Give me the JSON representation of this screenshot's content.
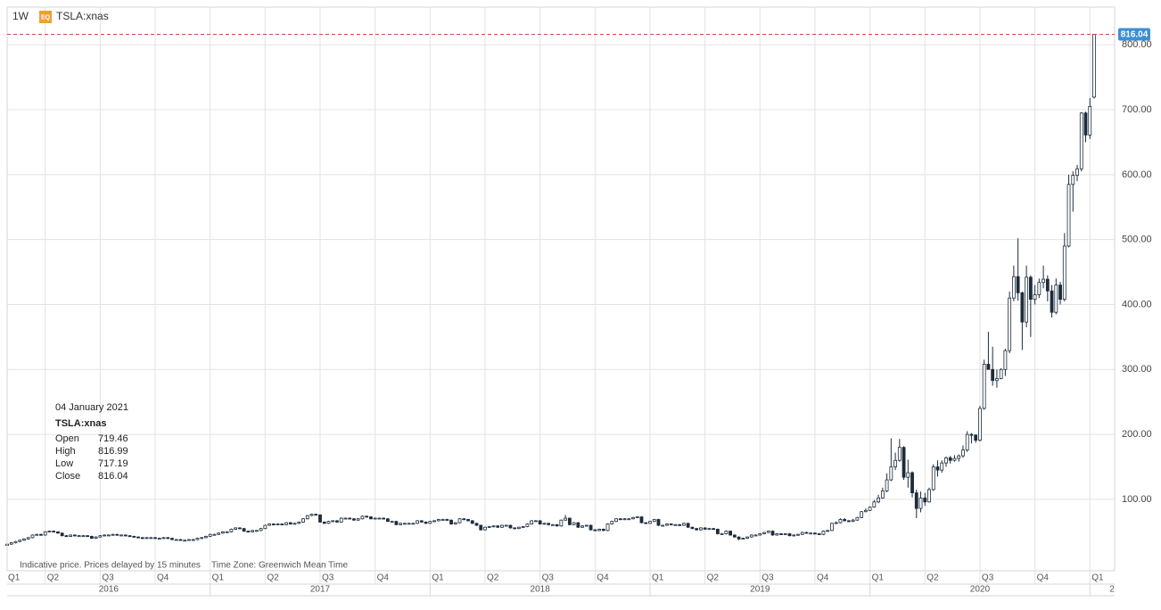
{
  "chart_data": {
    "type": "candlestick",
    "interval": "1W",
    "badge": "EQ",
    "symbol": "TSLA:xnas",
    "footnote": "Indicative price. Prices delayed by 15 minutes",
    "timezone": "Time Zone: Greenwich Mean Time",
    "tooltip_date": "04 January 2021",
    "line_color": "#1d2c3c",
    "up_color": "#ffffff",
    "down_color": "#1d2c3c",
    "ylim": [
      -10,
      858
    ],
    "yticks": [
      {
        "value": 100,
        "label": "100.00"
      },
      {
        "value": 200,
        "label": "200.00"
      },
      {
        "value": 300,
        "label": "300.00"
      },
      {
        "value": 400,
        "label": "400.00"
      },
      {
        "value": 500,
        "label": "500.00"
      },
      {
        "value": 600,
        "label": "600.00"
      },
      {
        "value": 700,
        "label": "700.00"
      },
      {
        "value": 800,
        "label": "800.00"
      }
    ],
    "grid": true,
    "quarters": [
      "Q1",
      "Q2",
      "Q3",
      "Q4",
      "Q1",
      "Q2",
      "Q3",
      "Q4",
      "Q1",
      "Q2",
      "Q3",
      "Q4",
      "Q1",
      "Q2",
      "Q3",
      "Q4",
      "Q1",
      "Q2",
      "Q3",
      "Q4",
      "Q1"
    ],
    "years": [
      "2016",
      "2017",
      "2018",
      "2019",
      "2020",
      "2"
    ],
    "series": [
      {
        "name": "Open",
        "values": [
          29,
          31,
          33,
          35,
          37,
          39,
          41,
          45,
          46,
          45,
          50,
          51,
          50,
          48,
          44,
          43,
          45,
          44,
          44,
          44,
          43,
          40,
          42,
          44,
          45,
          45,
          46,
          45,
          45,
          44,
          43,
          42,
          41,
          40,
          41,
          41,
          40,
          40,
          41,
          40,
          38,
          38,
          37,
          37,
          38,
          38,
          40,
          41,
          43,
          46,
          46,
          48,
          50,
          50,
          54,
          56,
          55,
          51,
          50,
          52,
          52,
          55,
          60,
          62,
          61,
          62,
          61,
          64,
          62,
          63,
          65,
          70,
          75,
          77,
          76,
          65,
          63,
          66,
          67,
          65,
          71,
          71,
          70,
          68,
          70,
          74,
          73,
          70,
          71,
          71,
          70,
          66,
          66,
          61,
          63,
          63,
          63,
          63,
          67,
          65,
          63,
          66,
          67,
          69,
          69,
          68,
          62,
          64,
          70,
          69,
          67,
          63,
          60,
          53,
          57,
          58,
          59,
          57,
          60,
          60,
          56,
          55,
          57,
          58,
          62,
          67,
          67,
          62,
          63,
          61,
          61,
          59,
          68,
          71,
          61,
          64,
          57,
          59,
          60,
          53,
          52,
          54,
          52,
          62,
          66,
          70,
          69,
          70,
          70,
          72,
          73,
          64,
          63,
          66,
          69,
          60,
          60,
          62,
          61,
          61,
          60,
          63,
          57,
          55,
          53,
          56,
          54,
          55,
          54,
          47,
          47,
          51,
          45,
          42,
          39,
          40,
          42,
          45,
          45,
          47,
          49,
          51,
          45,
          47,
          46,
          47,
          44,
          45,
          46,
          49,
          48,
          48,
          47,
          46,
          51,
          52,
          63,
          64,
          69,
          67,
          66,
          68,
          72,
          81,
          83,
          88,
          96,
          102,
          113,
          130,
          150,
          160,
          180,
          134,
          141,
          110,
          86,
          102,
          96,
          115,
          150,
          145,
          156,
          164,
          160,
          163,
          167,
          176,
          200,
          199,
          191,
          240,
          308,
          300,
          283,
          286,
          300,
          329,
          410,
          443,
          418,
          373,
          442,
          408,
          415,
          434,
          439,
          421,
          388,
          430,
          408,
          490,
          585,
          599,
          609,
          695,
          661,
          719.46
        ]
      },
      {
        "name": "High",
        "values": [
          32,
          34,
          36,
          38,
          40,
          42,
          46,
          47,
          47,
          51,
          52,
          52,
          51,
          49,
          45,
          46,
          46,
          45,
          45,
          45,
          44,
          43,
          45,
          46,
          46,
          47,
          47,
          46,
          46,
          45,
          44,
          43,
          42,
          42,
          42,
          42,
          41,
          42,
          42,
          41,
          39,
          39,
          38,
          39,
          39,
          41,
          42,
          44,
          47,
          47,
          49,
          51,
          51,
          55,
          57,
          57,
          56,
          52,
          53,
          53,
          56,
          61,
          63,
          63,
          63,
          63,
          65,
          65,
          64,
          66,
          71,
          76,
          78,
          78,
          77,
          66,
          67,
          68,
          68,
          72,
          72,
          72,
          71,
          71,
          75,
          75,
          74,
          72,
          72,
          72,
          71,
          67,
          67,
          64,
          64,
          64,
          64,
          68,
          68,
          66,
          67,
          68,
          70,
          70,
          70,
          69,
          65,
          71,
          71,
          70,
          68,
          64,
          61,
          58,
          59,
          60,
          60,
          61,
          61,
          61,
          57,
          58,
          59,
          63,
          68,
          68,
          68,
          64,
          64,
          62,
          62,
          69,
          76,
          72,
          65,
          65,
          60,
          61,
          61,
          54,
          55,
          55,
          63,
          67,
          71,
          71,
          71,
          71,
          73,
          74,
          74,
          65,
          67,
          70,
          70,
          61,
          63,
          63,
          62,
          62,
          64,
          64,
          58,
          56,
          57,
          57,
          56,
          56,
          55,
          48,
          52,
          52,
          46,
          43,
          41,
          43,
          46,
          46,
          48,
          50,
          52,
          52,
          48,
          48,
          48,
          48,
          46,
          47,
          50,
          50,
          49,
          49,
          48,
          52,
          53,
          64,
          66,
          71,
          71,
          68,
          70,
          73,
          82,
          86,
          89,
          99,
          107,
          118,
          140,
          194,
          172,
          193,
          182,
          161,
          143,
          115,
          112,
          110,
          118,
          154,
          160,
          160,
          166,
          167,
          168,
          169,
          183,
          205,
          202,
          200,
          244,
          315,
          358,
          335,
          300,
          302,
          332,
          420,
          460,
          502,
          420,
          460,
          445,
          430,
          440,
          460,
          445,
          430,
          440,
          435,
          510,
          600,
          605,
          615,
          696,
          697,
          718,
          816.99
        ]
      },
      {
        "name": "Low",
        "values": [
          28,
          30,
          32,
          34,
          36,
          38,
          40,
          44,
          44,
          44,
          49,
          49,
          47,
          43,
          42,
          42,
          43,
          43,
          43,
          42,
          39,
          39,
          41,
          43,
          44,
          44,
          44,
          44,
          43,
          42,
          41,
          40,
          39,
          39,
          40,
          39,
          39,
          39,
          39,
          37,
          37,
          36,
          36,
          36,
          37,
          37,
          39,
          40,
          42,
          45,
          45,
          47,
          49,
          49,
          53,
          54,
          50,
          49,
          49,
          51,
          51,
          54,
          59,
          60,
          60,
          60,
          60,
          61,
          61,
          62,
          64,
          69,
          74,
          75,
          64,
          62,
          62,
          65,
          64,
          64,
          70,
          69,
          67,
          67,
          69,
          72,
          69,
          69,
          70,
          69,
          65,
          65,
          60,
          60,
          62,
          62,
          62,
          62,
          64,
          62,
          62,
          65,
          66,
          68,
          67,
          61,
          61,
          63,
          68,
          66,
          62,
          59,
          52,
          52,
          56,
          57,
          56,
          56,
          59,
          55,
          54,
          54,
          56,
          57,
          61,
          66,
          61,
          61,
          60,
          60,
          58,
          58,
          67,
          60,
          60,
          56,
          56,
          58,
          52,
          51,
          51,
          51,
          51,
          61,
          65,
          68,
          68,
          69,
          69,
          71,
          63,
          62,
          62,
          65,
          59,
          59,
          59,
          60,
          60,
          59,
          59,
          56,
          54,
          52,
          52,
          53,
          53,
          53,
          46,
          46,
          46,
          44,
          41,
          37,
          38,
          39,
          41,
          44,
          44,
          46,
          48,
          44,
          44,
          45,
          45,
          43,
          43,
          44,
          45,
          47,
          47,
          46,
          45,
          45,
          50,
          51,
          62,
          63,
          66,
          65,
          65,
          67,
          71,
          80,
          82,
          87,
          94,
          101,
          111,
          128,
          145,
          158,
          130,
          118,
          103,
          71,
          80,
          90,
          95,
          113,
          135,
          141,
          150,
          155,
          158,
          158,
          164,
          173,
          186,
          187,
          189,
          238,
          300,
          275,
          272,
          285,
          290,
          325,
          405,
          406,
          330,
          365,
          350,
          400,
          410,
          425,
          405,
          380,
          385,
          400,
          405,
          488,
          543,
          590,
          605,
          650,
          655,
          717.19
        ]
      },
      {
        "name": "Close",
        "values": [
          31,
          33,
          35,
          37,
          39,
          41,
          45,
          46,
          45,
          50,
          51,
          50,
          48,
          44,
          43,
          45,
          44,
          44,
          44,
          43,
          40,
          42,
          44,
          45,
          45,
          46,
          45,
          45,
          44,
          43,
          42,
          41,
          40,
          41,
          41,
          40,
          40,
          41,
          40,
          38,
          38,
          37,
          37,
          38,
          38,
          40,
          41,
          43,
          46,
          46,
          48,
          50,
          50,
          54,
          56,
          55,
          51,
          50,
          52,
          52,
          55,
          60,
          62,
          61,
          62,
          61,
          64,
          62,
          63,
          65,
          70,
          75,
          77,
          76,
          65,
          63,
          66,
          67,
          65,
          71,
          71,
          70,
          68,
          70,
          74,
          73,
          70,
          71,
          71,
          70,
          66,
          66,
          61,
          63,
          63,
          63,
          63,
          67,
          65,
          63,
          66,
          67,
          69,
          69,
          68,
          62,
          64,
          70,
          69,
          67,
          63,
          60,
          53,
          57,
          58,
          59,
          57,
          60,
          60,
          56,
          55,
          57,
          58,
          62,
          67,
          67,
          62,
          63,
          61,
          61,
          59,
          68,
          71,
          61,
          64,
          57,
          59,
          60,
          53,
          52,
          54,
          52,
          62,
          66,
          70,
          69,
          70,
          70,
          72,
          73,
          64,
          63,
          66,
          69,
          60,
          60,
          62,
          61,
          61,
          60,
          63,
          57,
          55,
          53,
          56,
          54,
          55,
          54,
          47,
          47,
          51,
          45,
          42,
          39,
          40,
          42,
          45,
          45,
          47,
          49,
          51,
          45,
          47,
          46,
          47,
          44,
          45,
          46,
          49,
          48,
          48,
          47,
          46,
          51,
          52,
          63,
          64,
          69,
          67,
          66,
          68,
          72,
          81,
          83,
          88,
          96,
          102,
          113,
          130,
          150,
          160,
          180,
          134,
          141,
          110,
          86,
          102,
          96,
          115,
          150,
          145,
          156,
          164,
          160,
          163,
          167,
          176,
          200,
          199,
          191,
          240,
          308,
          300,
          283,
          286,
          300,
          329,
          410,
          443,
          418,
          373,
          442,
          408,
          415,
          434,
          439,
          421,
          388,
          430,
          408,
          490,
          585,
          599,
          609,
          695,
          661,
          705,
          816.04
        ]
      }
    ]
  }
}
